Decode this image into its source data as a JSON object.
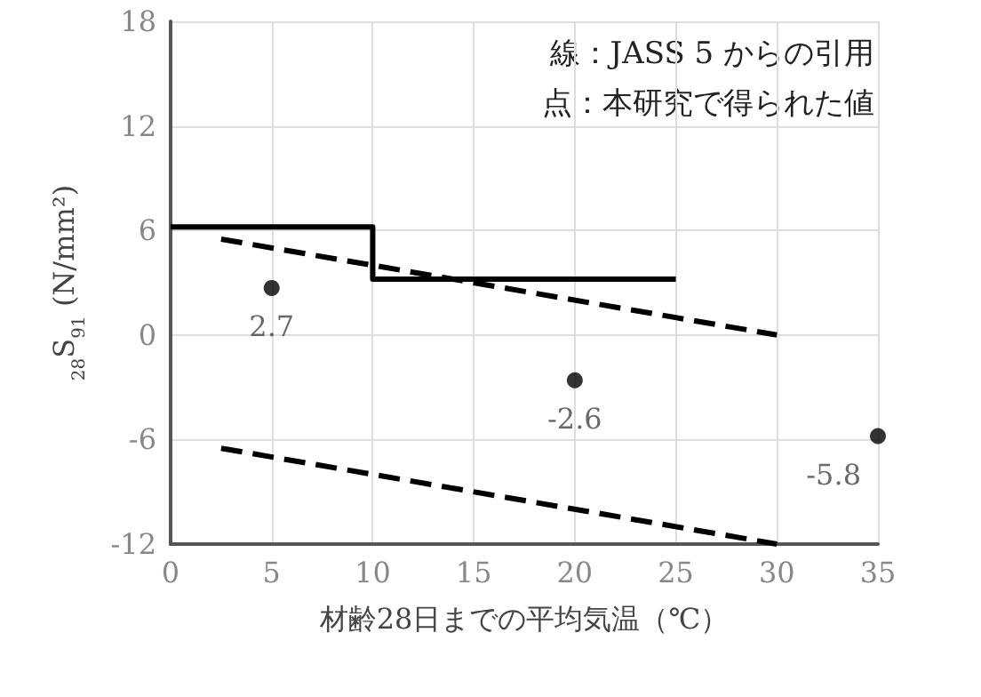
{
  "chart_data": {
    "type": "line",
    "xlabel": "材齢28日までの平均気温（℃）",
    "ylabel": "$_{28}$S$_{91}$ (N/mm²)",
    "annotations": [
      "線：JASS 5 からの引用",
      "点：本研究で得られた値"
    ],
    "series": [
      {
        "color": "#000000",
        "line_style": "solid",
        "marker": "none",
        "x": [
          0,
          10,
          10,
          25
        ],
        "values": [
          6.2,
          6.2,
          3.2,
          3.2
        ]
      },
      {
        "color": "#000000",
        "line_style": "dashed",
        "marker": "none",
        "x": [
          2.5,
          30
        ],
        "values": [
          5.5,
          0
        ]
      },
      {
        "color": "#000000",
        "line_style": "dashed",
        "marker": "none",
        "x": [
          2.5,
          30
        ],
        "values": [
          -6.5,
          -12
        ]
      },
      {
        "type": "scatter",
        "color": "#000000",
        "marker": "circle",
        "data_labels": true,
        "x": [
          5,
          20,
          35
        ],
        "values": [
          2.7,
          -2.6,
          -5.8
        ]
      }
    ],
    "xlim": [
      0,
      35
    ],
    "xticks": [
      0,
      5,
      10,
      15,
      20,
      25,
      30,
      35
    ],
    "ylim": [
      -12,
      18
    ],
    "yticks": [
      -12,
      -6,
      0,
      6,
      12,
      18
    ],
    "grid": true
  }
}
